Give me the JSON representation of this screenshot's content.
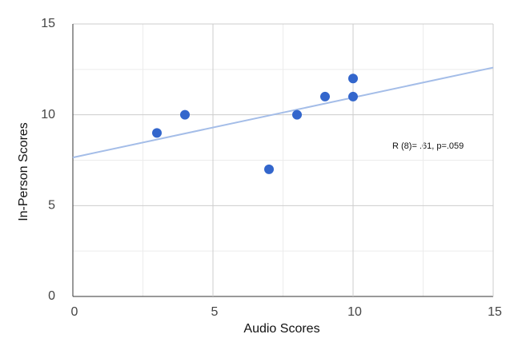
{
  "chart_data": {
    "type": "scatter",
    "x_label": "Audio Scores",
    "y_label": "In-Person Scores",
    "annotation": "R (8)= .61, p=.059",
    "x": [
      3,
      4,
      7,
      8,
      9,
      10,
      10
    ],
    "series": [
      {
        "name": "In-Person Scores",
        "color": "#3366cc",
        "values": [
          9,
          10,
          7,
          10,
          11,
          12,
          11
        ]
      }
    ],
    "trendline": {
      "color": "#a4bde8",
      "x": [
        0,
        15
      ],
      "y": [
        7.65,
        12.6
      ]
    },
    "xlim": [
      0,
      15
    ],
    "ylim": [
      0,
      15
    ],
    "xticks": [
      0,
      5,
      10,
      15
    ],
    "yticks": [
      0,
      5,
      10,
      15
    ],
    "grid": true,
    "minor_grid": true
  }
}
